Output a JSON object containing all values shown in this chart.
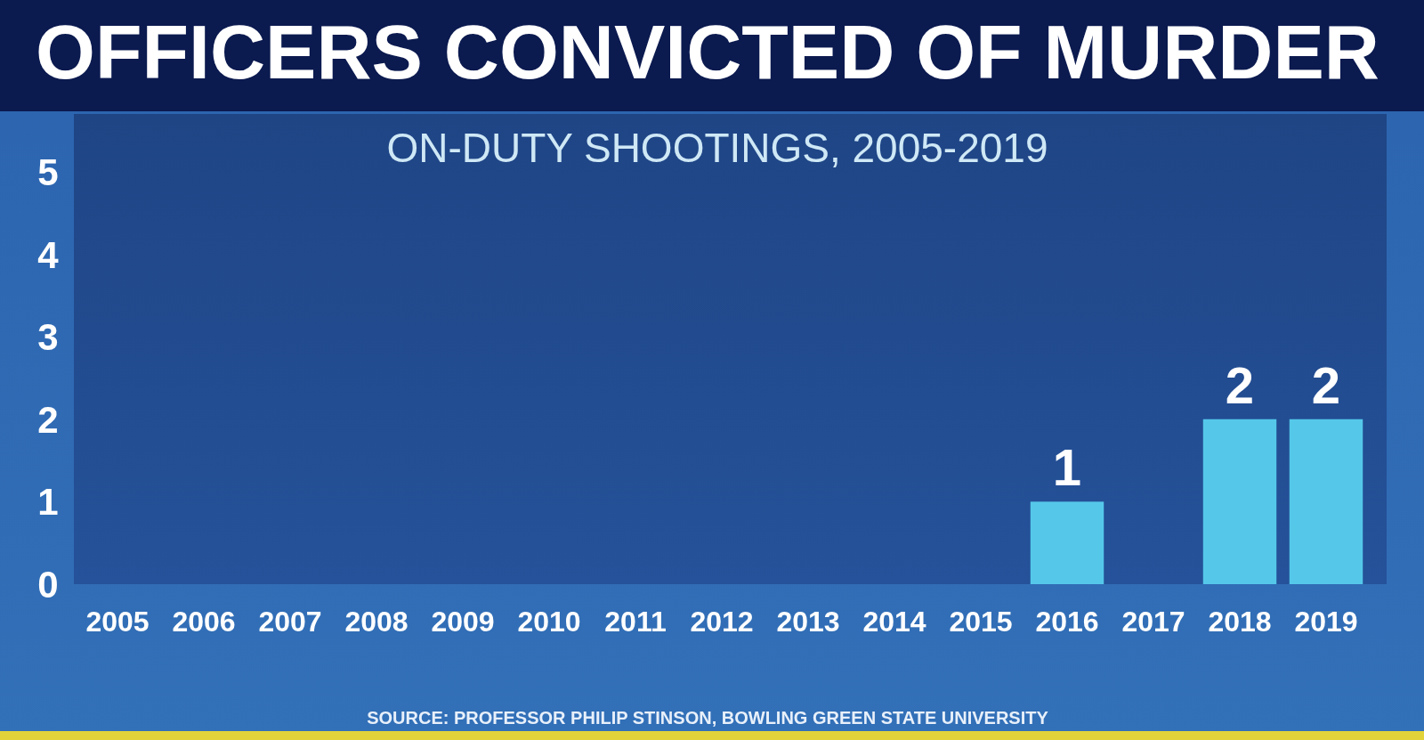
{
  "chart_data": {
    "type": "bar",
    "title": "OFFICERS CONVICTED OF MURDER",
    "subtitle": "ON-DUTY SHOOTINGS, 2005-2019",
    "categories": [
      "2005",
      "2006",
      "2007",
      "2008",
      "2009",
      "2010",
      "2011",
      "2012",
      "2013",
      "2014",
      "2015",
      "2016",
      "2017",
      "2018",
      "2019"
    ],
    "values": [
      0,
      0,
      0,
      0,
      0,
      0,
      0,
      0,
      0,
      0,
      0,
      1,
      0,
      2,
      2
    ],
    "value_labels": [
      null,
      null,
      null,
      null,
      null,
      null,
      null,
      null,
      null,
      null,
      null,
      "1",
      null,
      "2",
      "2"
    ],
    "color": "#55c8ea",
    "ylim": [
      0,
      5.7
    ],
    "yticks": [
      0,
      1,
      2,
      3,
      4,
      5
    ],
    "annotations": [
      "SOURCE: PROFESSOR PHILIP STINSON, BOWLING GREEN STATE UNIVERSITY"
    ]
  }
}
